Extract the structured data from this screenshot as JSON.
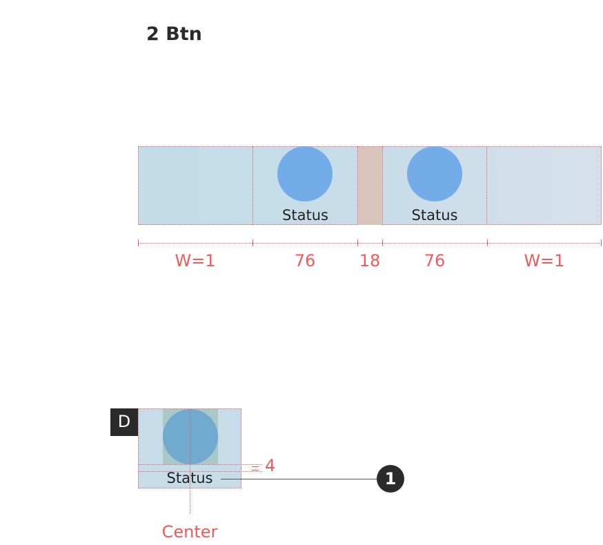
{
  "title": "2 Btn",
  "buttons": [
    {
      "label": "Status"
    },
    {
      "label": "Status"
    }
  ],
  "measurements": {
    "left": "W=1",
    "button1": "76",
    "gap": "18",
    "button2": "76",
    "right": "W=1"
  },
  "detail": {
    "badge": "D",
    "label": "Status",
    "spacing": "4",
    "marker": "1",
    "alignment": "Center"
  },
  "colors": {
    "accent_red": "#ef5a5a",
    "icon_blue": "#74ace9",
    "strip_bg": "#c6dce9",
    "gap_bg": "#d8c4ba",
    "dark": "#2b2b2b"
  }
}
